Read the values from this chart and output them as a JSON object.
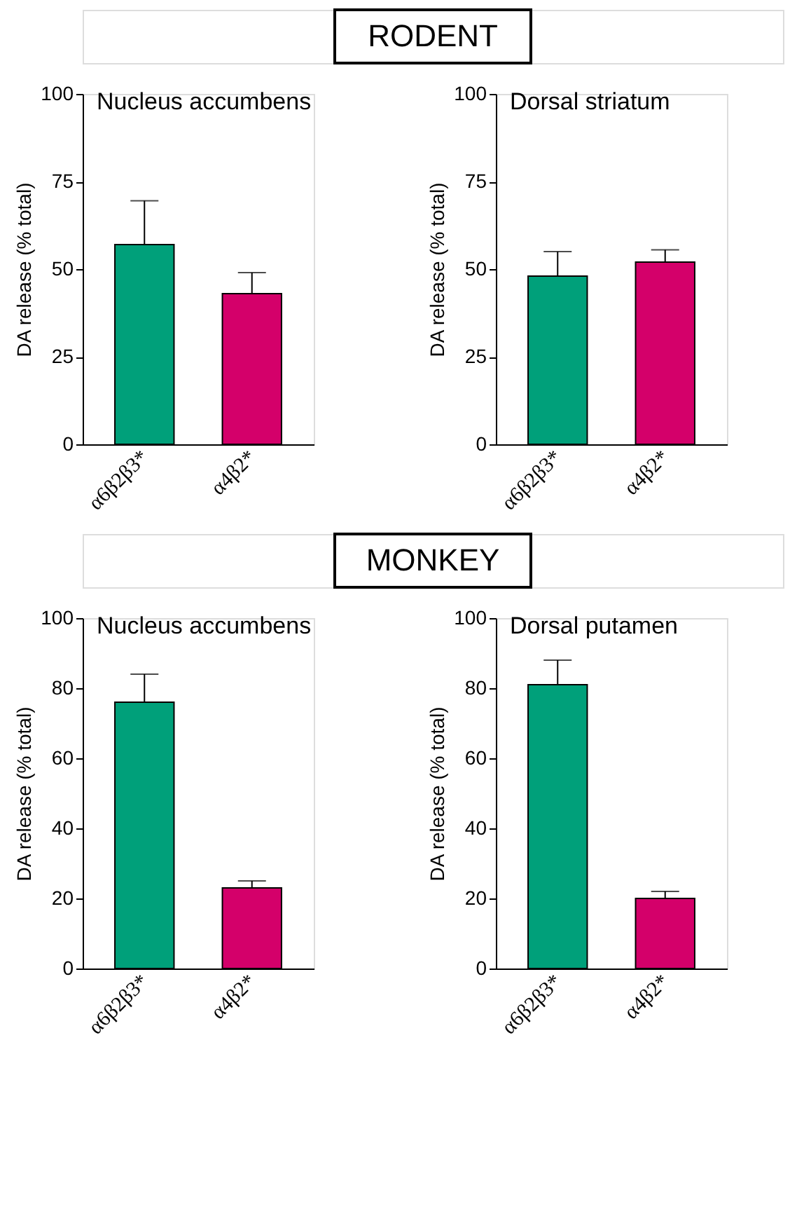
{
  "chart_data": [
    {
      "type": "bar",
      "title": "Nucleus accumbens",
      "annotations": [
        "RODENT"
      ],
      "ylabel": "DA release (% total)",
      "categories": [
        "α6β2β3*",
        "α4β2*"
      ],
      "values": [
        57,
        43
      ],
      "colors": [
        "#00a07a",
        "#d4006a"
      ],
      "errors": [
        [
          57,
          69.5
        ],
        [
          43,
          49
        ]
      ],
      "ylim": [
        0,
        100
      ],
      "yticks": [
        0,
        25,
        50,
        75,
        100
      ]
    },
    {
      "type": "bar",
      "title": "Dorsal striatum",
      "ylabel": "DA release (% total)",
      "categories": [
        "α6β2β3*",
        "α4β2*"
      ],
      "values": [
        48,
        52
      ],
      "colors": [
        "#00a07a",
        "#d4006a"
      ],
      "errors": [
        [
          48,
          55
        ],
        [
          52,
          55.5
        ]
      ],
      "ylim": [
        0,
        100
      ],
      "yticks": [
        0,
        25,
        50,
        75,
        100
      ]
    },
    {
      "type": "bar",
      "title": "Nucleus accumbens",
      "annotations": [
        "MONKEY"
      ],
      "ylabel": "DA release (% total)",
      "categories": [
        "α6β2β3*",
        "α4β2*"
      ],
      "values": [
        76,
        23
      ],
      "colors": [
        "#00a07a",
        "#d4006a"
      ],
      "errors": [
        [
          76,
          84
        ],
        [
          23,
          25
        ]
      ],
      "ylim": [
        0,
        100
      ],
      "yticks": [
        0,
        20,
        40,
        60,
        80,
        100
      ]
    },
    {
      "type": "bar",
      "title": "Dorsal putamen",
      "ylabel": "DA release (% total)",
      "categories": [
        "α6β2β3*",
        "α4β2*"
      ],
      "values": [
        81,
        20
      ],
      "colors": [
        "#00a07a",
        "#d4006a"
      ],
      "errors": [
        [
          81,
          88
        ],
        [
          20,
          22
        ]
      ],
      "ylim": [
        0,
        100
      ],
      "yticks": [
        0,
        20,
        40,
        60,
        80,
        100
      ]
    }
  ]
}
